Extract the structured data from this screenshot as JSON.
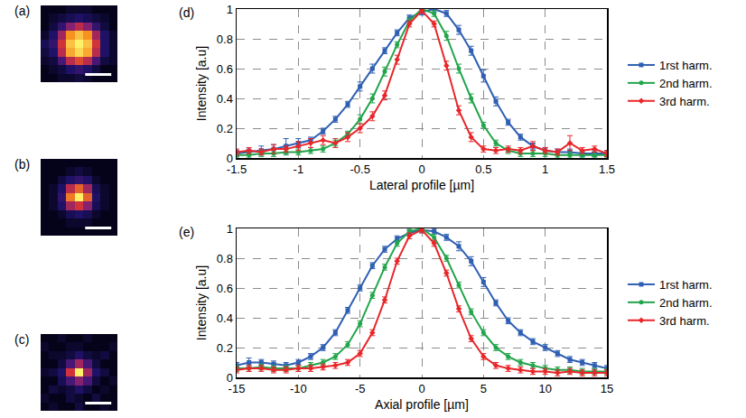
{
  "chart_data": [
    {
      "type": "heatmap",
      "label": "(a)",
      "tick_labels": false,
      "zlim": [
        0,
        1
      ],
      "z": [
        [
          0,
          0,
          0.05,
          0.05,
          0.1,
          0.05,
          0,
          0,
          0
        ],
        [
          0,
          0.05,
          0.1,
          0.2,
          0.25,
          0.2,
          0.1,
          0,
          0
        ],
        [
          0.05,
          0.1,
          0.3,
          0.55,
          0.65,
          0.55,
          0.3,
          0.1,
          0.05
        ],
        [
          0.1,
          0.2,
          0.55,
          0.85,
          0.95,
          0.85,
          0.55,
          0.2,
          0.05
        ],
        [
          0.15,
          0.25,
          0.6,
          0.9,
          1.0,
          0.9,
          0.6,
          0.2,
          0.05
        ],
        [
          0.05,
          0.2,
          0.5,
          0.8,
          0.9,
          0.8,
          0.5,
          0.2,
          0.05
        ],
        [
          0,
          0.1,
          0.25,
          0.45,
          0.55,
          0.45,
          0.25,
          0.1,
          0
        ],
        [
          0,
          0.05,
          0.1,
          0.15,
          0.2,
          0.15,
          0.1,
          0.05,
          0
        ],
        [
          0,
          0,
          0,
          0.05,
          0.05,
          0.05,
          0,
          0,
          0
        ]
      ]
    },
    {
      "type": "heatmap",
      "label": "(b)",
      "tick_labels": false,
      "zlim": [
        0,
        1
      ],
      "z": [
        [
          0,
          0,
          0,
          0,
          0,
          0,
          0,
          0,
          0
        ],
        [
          0,
          0,
          0,
          0.05,
          0.05,
          0.05,
          0,
          0,
          0
        ],
        [
          0,
          0,
          0.05,
          0.15,
          0.2,
          0.15,
          0.05,
          0,
          0
        ],
        [
          0,
          0.05,
          0.2,
          0.5,
          0.6,
          0.45,
          0.15,
          0.05,
          0
        ],
        [
          0,
          0.05,
          0.25,
          0.75,
          1.0,
          0.7,
          0.2,
          0.05,
          0
        ],
        [
          0,
          0.05,
          0.2,
          0.55,
          0.7,
          0.5,
          0.15,
          0.05,
          0
        ],
        [
          0,
          0,
          0.1,
          0.2,
          0.25,
          0.2,
          0.05,
          0,
          0
        ],
        [
          0,
          0,
          0,
          0.05,
          0.1,
          0.05,
          0,
          0,
          0
        ],
        [
          0,
          0,
          0,
          0,
          0,
          0,
          0,
          0,
          0
        ]
      ]
    },
    {
      "type": "heatmap",
      "label": "(c)",
      "tick_labels": false,
      "zlim": [
        0,
        1
      ],
      "z": [
        [
          0,
          0.05,
          0,
          0,
          0.1,
          0,
          0,
          0.05,
          0
        ],
        [
          0.05,
          0,
          0,
          0.1,
          0.05,
          0,
          0.1,
          0,
          0
        ],
        [
          0,
          0.1,
          0.05,
          0.1,
          0.2,
          0.1,
          0,
          0.05,
          0
        ],
        [
          0,
          0,
          0.15,
          0.3,
          0.45,
          0.3,
          0.1,
          0,
          0.05
        ],
        [
          0.05,
          0.1,
          0.2,
          0.6,
          1.0,
          0.5,
          0.2,
          0.1,
          0
        ],
        [
          0,
          0,
          0.1,
          0.3,
          0.5,
          0.3,
          0.1,
          0,
          0
        ],
        [
          0,
          0.05,
          0.05,
          0.1,
          0.2,
          0.1,
          0.05,
          0.1,
          0
        ],
        [
          0.05,
          0,
          0,
          0.05,
          0.05,
          0,
          0,
          0,
          0.05
        ],
        [
          0,
          0,
          0.05,
          0,
          0,
          0.05,
          0,
          0,
          0
        ]
      ]
    },
    {
      "type": "line",
      "label": "(d)",
      "x_label": "Lateral profile [µm]",
      "y_label": "Intensity [a.u]",
      "grid": true,
      "legend": "right",
      "xlim": [
        -1.5,
        1.5
      ],
      "xticks": [
        -1.5,
        -1,
        -0.5,
        0,
        0.5,
        1,
        1.5
      ],
      "ylim": [
        0,
        1
      ],
      "yticks": [
        0,
        0.2,
        0.4,
        0.6,
        0.8,
        1
      ],
      "x": [
        -1.5,
        -1.4,
        -1.3,
        -1.2,
        -1.1,
        -1.0,
        -0.9,
        -0.8,
        -0.7,
        -0.6,
        -0.5,
        -0.4,
        -0.3,
        -0.2,
        -0.1,
        0,
        0.1,
        0.2,
        0.3,
        0.4,
        0.5,
        0.6,
        0.7,
        0.8,
        0.9,
        1.0,
        1.1,
        1.2,
        1.3,
        1.4,
        1.5
      ],
      "series": [
        {
          "name": "1rst harm.",
          "color": "#2f5fb3",
          "marker": "square",
          "values": [
            0.03,
            0.04,
            0.05,
            0.06,
            0.08,
            0.1,
            0.12,
            0.18,
            0.26,
            0.36,
            0.48,
            0.6,
            0.72,
            0.84,
            0.94,
            0.98,
            1.0,
            0.97,
            0.86,
            0.72,
            0.55,
            0.38,
            0.24,
            0.14,
            0.08,
            0.05,
            0.04,
            0.04,
            0.03,
            0.03,
            0.03
          ],
          "errors": [
            0.02,
            0.02,
            0.03,
            0.03,
            0.05,
            0.03,
            0.02,
            0.02,
            0.02,
            0.02,
            0.03,
            0.03,
            0.02,
            0.02,
            0.02,
            0.02,
            0.02,
            0.02,
            0.03,
            0.03,
            0.04,
            0.03,
            0.02,
            0.02,
            0.02,
            0.02,
            0.02,
            0.02,
            0.02,
            0.02,
            0.02
          ]
        },
        {
          "name": "2nd harm.",
          "color": "#22a54b",
          "marker": "circle",
          "values": [
            0.02,
            0.02,
            0.03,
            0.03,
            0.04,
            0.04,
            0.05,
            0.06,
            0.1,
            0.16,
            0.26,
            0.4,
            0.58,
            0.76,
            0.92,
            1.0,
            0.97,
            0.82,
            0.6,
            0.4,
            0.22,
            0.1,
            0.05,
            0.03,
            0.03,
            0.03,
            0.02,
            0.02,
            0.02,
            0.02,
            0.02
          ],
          "errors": [
            0.02,
            0.02,
            0.02,
            0.02,
            0.02,
            0.02,
            0.02,
            0.02,
            0.02,
            0.02,
            0.03,
            0.03,
            0.03,
            0.02,
            0.02,
            0.02,
            0.02,
            0.03,
            0.03,
            0.03,
            0.02,
            0.02,
            0.02,
            0.02,
            0.02,
            0.02,
            0.02,
            0.02,
            0.02,
            0.02,
            0.02
          ]
        },
        {
          "name": "3rd harm.",
          "color": "#e8262a",
          "marker": "diamond",
          "values": [
            0.04,
            0.05,
            0.04,
            0.06,
            0.06,
            0.08,
            0.1,
            0.12,
            0.1,
            0.14,
            0.2,
            0.28,
            0.42,
            0.66,
            0.9,
            0.99,
            0.9,
            0.62,
            0.32,
            0.14,
            0.06,
            0.05,
            0.06,
            0.05,
            0.08,
            0.05,
            0.04,
            0.1,
            0.05,
            0.06,
            0.03
          ],
          "errors": [
            0.02,
            0.02,
            0.02,
            0.03,
            0.02,
            0.03,
            0.03,
            0.03,
            0.03,
            0.03,
            0.03,
            0.03,
            0.03,
            0.03,
            0.02,
            0.02,
            0.02,
            0.03,
            0.03,
            0.03,
            0.02,
            0.02,
            0.02,
            0.02,
            0.03,
            0.02,
            0.02,
            0.05,
            0.02,
            0.02,
            0.02
          ]
        }
      ]
    },
    {
      "type": "line",
      "label": "(e)",
      "x_label": "Axial profile [µm]",
      "y_label": "Intensity [a.u]",
      "grid": true,
      "legend": "right",
      "xlim": [
        -15,
        15
      ],
      "xticks": [
        -15,
        -10,
        -5,
        0,
        5,
        10,
        15
      ],
      "ylim": [
        0,
        1
      ],
      "yticks": [
        0,
        0.2,
        0.4,
        0.6,
        0.8,
        1
      ],
      "x": [
        -15,
        -14,
        -13,
        -12,
        -11,
        -10,
        -9,
        -8,
        -7,
        -6,
        -5,
        -4,
        -3,
        -2,
        -1,
        0,
        1,
        2,
        3,
        4,
        5,
        6,
        7,
        8,
        9,
        10,
        11,
        12,
        13,
        14,
        15
      ],
      "series": [
        {
          "name": "1rst harm.",
          "color": "#2f5fb3",
          "marker": "square",
          "values": [
            0.08,
            0.1,
            0.1,
            0.09,
            0.08,
            0.1,
            0.14,
            0.2,
            0.3,
            0.45,
            0.6,
            0.75,
            0.86,
            0.93,
            0.97,
            0.99,
            0.98,
            0.94,
            0.88,
            0.78,
            0.64,
            0.5,
            0.38,
            0.3,
            0.24,
            0.2,
            0.16,
            0.12,
            0.1,
            0.08,
            0.06
          ],
          "errors": [
            0.02,
            0.03,
            0.02,
            0.02,
            0.02,
            0.02,
            0.02,
            0.02,
            0.02,
            0.02,
            0.02,
            0.02,
            0.02,
            0.02,
            0.02,
            0.02,
            0.02,
            0.02,
            0.03,
            0.03,
            0.03,
            0.02,
            0.02,
            0.02,
            0.02,
            0.02,
            0.02,
            0.02,
            0.02,
            0.02,
            0.02
          ]
        },
        {
          "name": "2nd harm.",
          "color": "#22a54b",
          "marker": "circle",
          "values": [
            0.06,
            0.06,
            0.07,
            0.06,
            0.06,
            0.06,
            0.08,
            0.1,
            0.14,
            0.22,
            0.36,
            0.55,
            0.74,
            0.9,
            0.98,
            1.0,
            0.94,
            0.8,
            0.62,
            0.44,
            0.3,
            0.2,
            0.14,
            0.1,
            0.08,
            0.06,
            0.05,
            0.05,
            0.04,
            0.04,
            0.04
          ],
          "errors": [
            0.02,
            0.02,
            0.02,
            0.02,
            0.02,
            0.02,
            0.02,
            0.02,
            0.02,
            0.02,
            0.02,
            0.02,
            0.02,
            0.02,
            0.02,
            0.02,
            0.02,
            0.02,
            0.02,
            0.02,
            0.02,
            0.02,
            0.02,
            0.02,
            0.02,
            0.02,
            0.02,
            0.02,
            0.02,
            0.02,
            0.02
          ]
        },
        {
          "name": "3rd harm.",
          "color": "#e8262a",
          "marker": "diamond",
          "values": [
            0.05,
            0.06,
            0.06,
            0.05,
            0.05,
            0.06,
            0.06,
            0.07,
            0.08,
            0.1,
            0.16,
            0.3,
            0.52,
            0.78,
            0.95,
            0.99,
            0.9,
            0.7,
            0.46,
            0.26,
            0.14,
            0.08,
            0.06,
            0.05,
            0.04,
            0.04,
            0.03,
            0.04,
            0.03,
            0.03,
            0.03
          ],
          "errors": [
            0.02,
            0.02,
            0.02,
            0.02,
            0.02,
            0.02,
            0.02,
            0.02,
            0.02,
            0.02,
            0.02,
            0.02,
            0.02,
            0.02,
            0.02,
            0.02,
            0.02,
            0.02,
            0.02,
            0.02,
            0.02,
            0.02,
            0.02,
            0.02,
            0.02,
            0.02,
            0.02,
            0.02,
            0.02,
            0.02,
            0.02
          ]
        }
      ]
    }
  ]
}
